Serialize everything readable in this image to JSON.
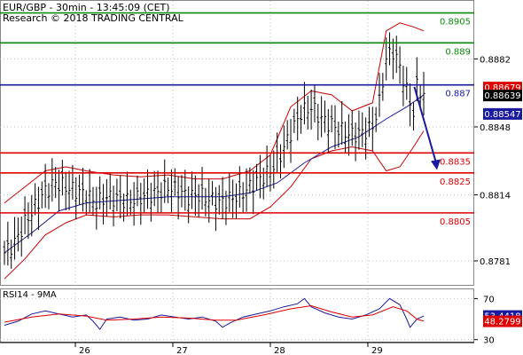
{
  "header": {
    "line1": "EUR/GBP - 30min - 13:45:09 (CET)",
    "line2": "Research © 2018 TRADING CENTRAL"
  },
  "chart_data": [
    {
      "type": "line",
      "series_kind": "price-bars",
      "ylim": [
        0.8769,
        0.8911
      ],
      "y_ticks": [
        "0.8882",
        "0.8848",
        "0.8814",
        "0.8781"
      ],
      "x_tick_labels": [
        "26",
        "27",
        "28",
        "29"
      ],
      "grid": true,
      "legend": "none",
      "levels": [
        {
          "label": "0.8905",
          "value": 0.8905,
          "color": "#0a8a0a"
        },
        {
          "label": "0.889",
          "value": 0.889,
          "color": "#0a8a0a"
        },
        {
          "label": "0.887",
          "value": 0.8869,
          "color": "#1a1aa0"
        },
        {
          "label": "0.8835",
          "value": 0.8835,
          "color": "#dd0000"
        },
        {
          "label": "0.8825",
          "value": 0.8825,
          "color": "#dd0000"
        },
        {
          "label": "0.8805",
          "value": 0.8805,
          "color": "#dd0000"
        }
      ],
      "price_markers": [
        {
          "label": "0.88679",
          "value": 0.88679,
          "bg": "#dd0000"
        },
        {
          "label": "0.88639",
          "value": 0.88639,
          "bg": "#000000"
        },
        {
          "label": "0.88547",
          "value": 0.88547,
          "bg": "#1a1aa0"
        }
      ],
      "close_trace": [
        [
          0,
          0.8785
        ],
        [
          3,
          0.879
        ],
        [
          6,
          0.88
        ],
        [
          9,
          0.8808
        ],
        [
          12,
          0.8816
        ],
        [
          15,
          0.882
        ],
        [
          18,
          0.8818
        ],
        [
          21,
          0.8816
        ],
        [
          24,
          0.8814
        ],
        [
          27,
          0.881
        ],
        [
          30,
          0.8813
        ],
        [
          33,
          0.8812
        ],
        [
          36,
          0.8811
        ],
        [
          39,
          0.8812
        ],
        [
          42,
          0.8814
        ],
        [
          45,
          0.8815
        ],
        [
          48,
          0.8818
        ],
        [
          51,
          0.8816
        ],
        [
          54,
          0.8813
        ],
        [
          57,
          0.8814
        ],
        [
          60,
          0.8812
        ],
        [
          63,
          0.881
        ],
        [
          66,
          0.8812
        ],
        [
          69,
          0.8814
        ],
        [
          72,
          0.8818
        ],
        [
          75,
          0.8822
        ],
        [
          78,
          0.8826
        ],
        [
          81,
          0.8834
        ],
        [
          84,
          0.8845
        ],
        [
          87,
          0.8855
        ],
        [
          90,
          0.8858
        ],
        [
          93,
          0.8852
        ],
        [
          96,
          0.8849
        ],
        [
          99,
          0.8846
        ],
        [
          102,
          0.8844
        ],
        [
          105,
          0.8845
        ],
        [
          108,
          0.8848
        ],
        [
          110,
          0.886
        ],
        [
          112,
          0.8882
        ],
        [
          114,
          0.8886
        ],
        [
          116,
          0.8878
        ],
        [
          118,
          0.8866
        ],
        [
          120,
          0.8855
        ],
        [
          121,
          0.8868
        ],
        [
          122,
          0.8866
        ],
        [
          123,
          0.8864
        ]
      ],
      "moving_average": [
        [
          0,
          0.8785
        ],
        [
          8,
          0.8795
        ],
        [
          16,
          0.8806
        ],
        [
          24,
          0.881
        ],
        [
          32,
          0.8811
        ],
        [
          40,
          0.8812
        ],
        [
          48,
          0.8813
        ],
        [
          56,
          0.8813
        ],
        [
          64,
          0.8813
        ],
        [
          72,
          0.8815
        ],
        [
          80,
          0.882
        ],
        [
          88,
          0.883
        ],
        [
          96,
          0.8838
        ],
        [
          104,
          0.8843
        ],
        [
          112,
          0.8852
        ],
        [
          118,
          0.8858
        ],
        [
          123,
          0.8864
        ]
      ],
      "bollinger_upper": [
        [
          0,
          0.881
        ],
        [
          6,
          0.8818
        ],
        [
          12,
          0.8826
        ],
        [
          18,
          0.8828
        ],
        [
          24,
          0.8826
        ],
        [
          32,
          0.8824
        ],
        [
          40,
          0.8823
        ],
        [
          48,
          0.8824
        ],
        [
          56,
          0.8822
        ],
        [
          64,
          0.8822
        ],
        [
          72,
          0.8826
        ],
        [
          78,
          0.8834
        ],
        [
          84,
          0.8858
        ],
        [
          90,
          0.8866
        ],
        [
          96,
          0.8864
        ],
        [
          102,
          0.8856
        ],
        [
          108,
          0.886
        ],
        [
          112,
          0.8896
        ],
        [
          116,
          0.89
        ],
        [
          120,
          0.8898
        ],
        [
          123,
          0.8896
        ]
      ],
      "bollinger_lower": [
        [
          0,
          0.8772
        ],
        [
          6,
          0.8782
        ],
        [
          12,
          0.8794
        ],
        [
          18,
          0.88
        ],
        [
          24,
          0.8804
        ],
        [
          32,
          0.8803
        ],
        [
          40,
          0.8804
        ],
        [
          48,
          0.8804
        ],
        [
          56,
          0.8803
        ],
        [
          64,
          0.8802
        ],
        [
          72,
          0.8802
        ],
        [
          78,
          0.8808
        ],
        [
          84,
          0.8818
        ],
        [
          90,
          0.8832
        ],
        [
          96,
          0.8836
        ],
        [
          102,
          0.8838
        ],
        [
          108,
          0.8836
        ],
        [
          112,
          0.8826
        ],
        [
          116,
          0.8828
        ],
        [
          120,
          0.8838
        ],
        [
          123,
          0.8846
        ]
      ],
      "forecast_arrow": {
        "from": [
          120,
          0.8868
        ],
        "to": [
          123,
          0.8826
        ],
        "color": "#1a1aa0"
      }
    },
    {
      "type": "line",
      "title": "RSI14 - 9MA",
      "ylim": [
        28,
        79
      ],
      "y_ticks": [
        "70",
        "30"
      ],
      "value_markers": [
        {
          "label": "53.4418",
          "value": 53.4418,
          "bg": "#1a1aa0"
        },
        {
          "label": "48.2799",
          "value": 48.2799,
          "bg": "#dd0000"
        }
      ],
      "series": [
        {
          "name": "RSI14",
          "color": "#1a1aa0",
          "points": [
            [
              0,
              44
            ],
            [
              4,
              48
            ],
            [
              8,
              55
            ],
            [
              12,
              58
            ],
            [
              16,
              55
            ],
            [
              20,
              52
            ],
            [
              24,
              54
            ],
            [
              26,
              48
            ],
            [
              28,
              40
            ],
            [
              30,
              50
            ],
            [
              34,
              52
            ],
            [
              38,
              49
            ],
            [
              42,
              50
            ],
            [
              46,
              54
            ],
            [
              50,
              52
            ],
            [
              54,
              50
            ],
            [
              58,
              52
            ],
            [
              62,
              48
            ],
            [
              64,
              42
            ],
            [
              66,
              46
            ],
            [
              70,
              52
            ],
            [
              74,
              55
            ],
            [
              78,
              58
            ],
            [
              82,
              62
            ],
            [
              86,
              65
            ],
            [
              88,
              70
            ],
            [
              90,
              62
            ],
            [
              94,
              56
            ],
            [
              98,
              52
            ],
            [
              102,
              50
            ],
            [
              106,
              54
            ],
            [
              110,
              60
            ],
            [
              113,
              70
            ],
            [
              116,
              64
            ],
            [
              118,
              50
            ],
            [
              119,
              42
            ],
            [
              121,
              50
            ],
            [
              123,
              53
            ]
          ]
        },
        {
          "name": "9MA",
          "color": "#dd0000",
          "points": [
            [
              0,
              47
            ],
            [
              8,
              52
            ],
            [
              16,
              55
            ],
            [
              24,
              53
            ],
            [
              30,
              49
            ],
            [
              38,
              50
            ],
            [
              46,
              52
            ],
            [
              54,
              51
            ],
            [
              62,
              49
            ],
            [
              68,
              49
            ],
            [
              76,
              54
            ],
            [
              84,
              60
            ],
            [
              90,
              63
            ],
            [
              96,
              57
            ],
            [
              102,
              52
            ],
            [
              108,
              54
            ],
            [
              114,
              62
            ],
            [
              118,
              58
            ],
            [
              121,
              50
            ],
            [
              123,
              48
            ]
          ]
        }
      ]
    }
  ]
}
